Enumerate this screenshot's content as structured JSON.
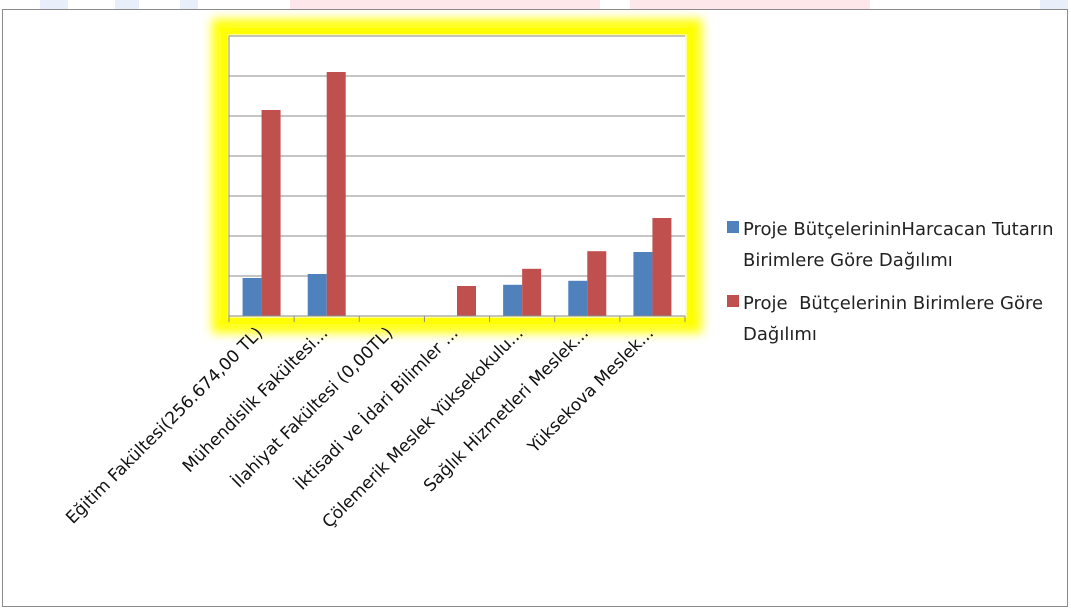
{
  "chart_data": {
    "type": "bar",
    "categories": [
      "Eğitim Fakültesi(256.674,00 TL)",
      "Mühendislik Fakültesi...",
      "İlahiyat Fakültesi (0,00TL)",
      "İktisadi ve İdari Bilimler ...",
      "Çölemerik Meslek Yüksekokulu...",
      "Sağlık Hizmetleri Meslek...",
      "Yüksekova Meslek..."
    ],
    "series": [
      {
        "name": "Proje BütçelerininHarcacan Tutarın Birimlere Göre Dağılımı",
        "color": "#4f81bd",
        "values": [
          0.95,
          1.05,
          0,
          0,
          0.78,
          0.88,
          1.6
        ]
      },
      {
        "name": "Proje  Bütçelerinin Birimlere Göre Dağılımı",
        "color": "#c0504d",
        "values": [
          5.15,
          6.1,
          0,
          0.75,
          1.18,
          1.62,
          2.45
        ]
      }
    ],
    "ylim": [
      0,
      7
    ],
    "grid": true,
    "legend_position": "right",
    "plot_highlight_color": "#ffff00"
  }
}
